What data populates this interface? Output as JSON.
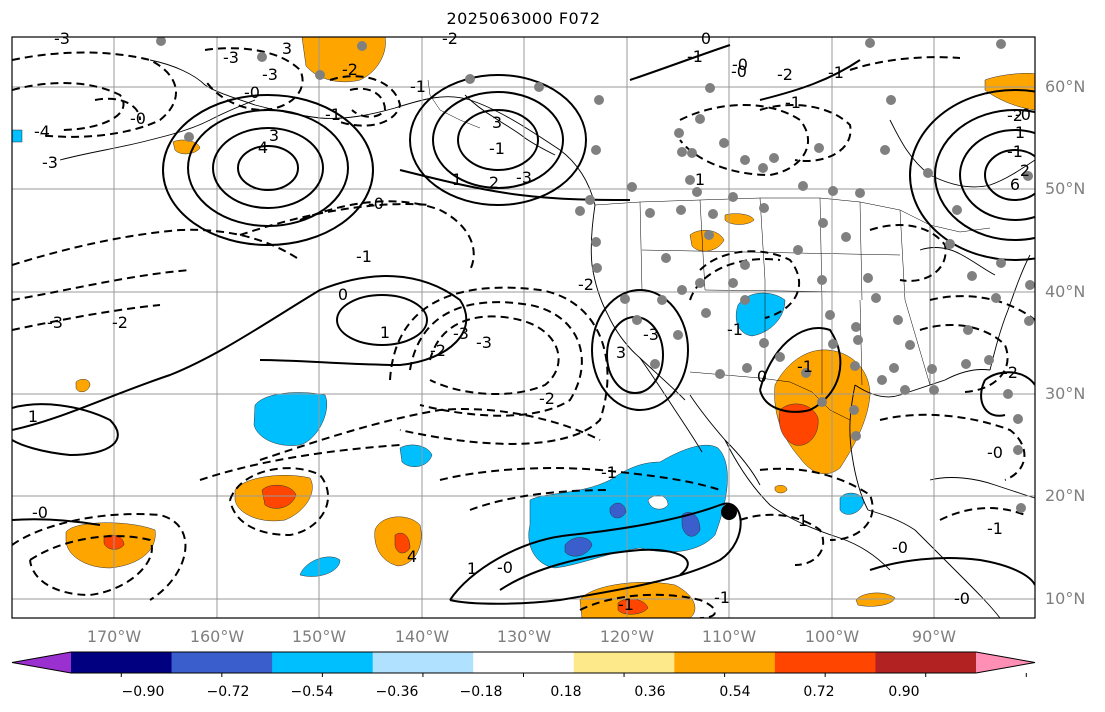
{
  "title": "2025063000 F072",
  "lat_labels": [
    "60°N",
    "50°N",
    "40°N",
    "30°N",
    "20°N",
    "10°N"
  ],
  "lon_labels": [
    "170°W",
    "160°W",
    "150°W",
    "140°W",
    "130°W",
    "120°W",
    "110°W",
    "100°W",
    "90°W"
  ],
  "colorbar": {
    "ticks": [
      "−0.90",
      "−0.72",
      "−0.54",
      "−0.36",
      "−0.18",
      "0.18",
      "0.36",
      "0.54",
      "0.72",
      "0.90"
    ],
    "colors": [
      "#9b30d0",
      "#000080",
      "#3a5fcd",
      "#00bfff",
      "#b0e2ff",
      "#ffffff",
      "#fde98a",
      "#ffa500",
      "#ff4500",
      "#b22222",
      "#ff8fb4"
    ]
  },
  "contour_labels": [
    "-3",
    "3",
    "-3",
    "-2",
    "-1",
    "-0",
    "-3",
    "4",
    "-3",
    "-0",
    "3",
    "-4",
    "-1",
    "-2",
    "-1",
    "3",
    "1",
    "2",
    "-3",
    "-0",
    "-1",
    "-2",
    "-3",
    "-2",
    "1",
    "-0",
    "-3",
    "4",
    "6",
    "-2",
    "-0",
    "-2",
    "-1",
    "0",
    "1",
    "-2",
    "-3",
    "3",
    "-3",
    "-2",
    "-1",
    "1",
    "-0",
    "-1",
    "-2",
    "-0",
    "1",
    "-1",
    "0",
    "-1",
    "-0",
    "-1",
    "0",
    "-1",
    "-0",
    "-1",
    "-0",
    "-1",
    "1",
    "-1",
    "2",
    "1",
    "-0"
  ],
  "map": {
    "region": "North Pacific and North America",
    "lon_range": [
      -180,
      -80
    ],
    "lat_range": [
      7,
      65
    ]
  }
}
